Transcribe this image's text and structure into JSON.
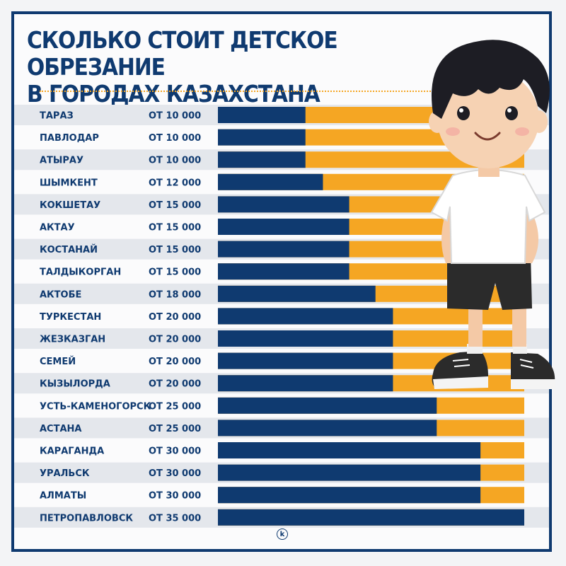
{
  "title_lines": [
    "СКОЛЬКО СТОИТ ДЕТСКОЕ ОБРЕЗАНИЕ",
    "В ГОРОДАХ КАЗАХСТАНА"
  ],
  "colors": {
    "navy": "#0f3a70",
    "orange": "#f5a623",
    "stripe": "#e4e7ec"
  },
  "illustration": "cartoon-boy",
  "chart_data": {
    "type": "bar",
    "orientation": "horizontal",
    "value_prefix": "ОТ ",
    "xlim": [
      0,
      35000
    ],
    "categories": [
      "ТАРАЗ",
      "ПАВЛОДАР",
      "АТЫРАУ",
      "ШЫМКЕНТ",
      "КОКШЕТАУ",
      "АКТАУ",
      "КОСТАНАЙ",
      "ТАЛДЫКОРГАН",
      "АКТОБЕ",
      "ТУРКЕСТАН",
      "ЖЕЗКАЗГАН",
      "СЕМЕЙ",
      "КЫЗЫЛОРДА",
      "УСТЬ-КАМЕНОГОРСК",
      "АСТАНА",
      "КАРАГАНДА",
      "УРАЛЬСК",
      "АЛМАТЫ",
      "ПЕТРОПАВЛОВСК"
    ],
    "labels": [
      "ОТ 10 000",
      "ОТ 10 000",
      "ОТ 10 000",
      "ОТ 12 000",
      "ОТ 15 000",
      "ОТ 15 000",
      "ОТ 15 000",
      "ОТ 15 000",
      "ОТ 18 000",
      "ОТ 20 000",
      "ОТ 20 000",
      "ОТ 20 000",
      "ОТ 20 000",
      "ОТ 25 000",
      "ОТ 25 000",
      "ОТ 30 000",
      "ОТ 30 000",
      "ОТ 30 000",
      "ОТ 35 000"
    ],
    "values": [
      10000,
      10000,
      10000,
      12000,
      15000,
      15000,
      15000,
      15000,
      18000,
      20000,
      20000,
      20000,
      20000,
      25000,
      25000,
      30000,
      30000,
      30000,
      35000
    ]
  }
}
